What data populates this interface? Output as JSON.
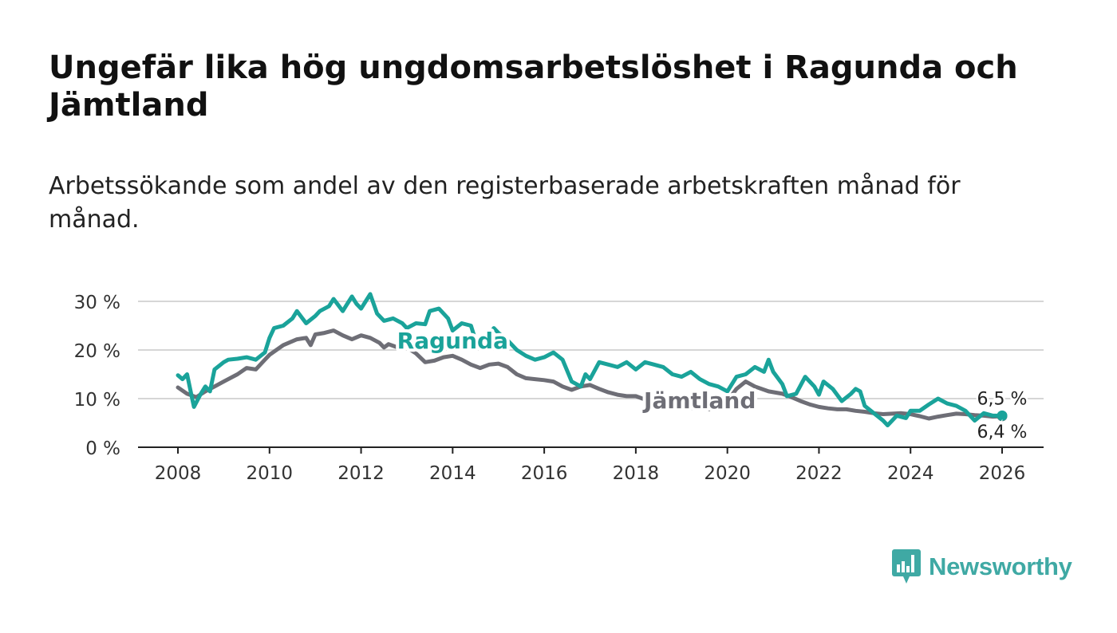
{
  "title": "Ungefär lika hög ungdomsarbetslöshet i Ragunda och Jämtland",
  "subtitle": "Arbetssökande som andel av den registerbaserade arbetskraften månad för månad.",
  "brand": {
    "name": "Newsworthy",
    "color": "#3fa9a4",
    "icon": "newsworthy-logo-icon"
  },
  "chart_data": {
    "type": "line",
    "title": "Ungefär lika hög ungdomsarbetslöshet i Ragunda och Jämtland",
    "xlabel": "",
    "ylabel": "",
    "xlim": [
      2007.6,
      2026.9
    ],
    "ylim": [
      0,
      30
    ],
    "x_ticks": [
      2008,
      2010,
      2012,
      2014,
      2016,
      2018,
      2020,
      2022,
      2024,
      2026
    ],
    "x_tick_labels": [
      "2008",
      "2010",
      "2012",
      "2014",
      "2016",
      "2018",
      "2020",
      "2022",
      "2024",
      "2026"
    ],
    "y_ticks": [
      0,
      10,
      20,
      30
    ],
    "y_tick_labels": [
      "0 %",
      "10 %",
      "20 %",
      "30 %"
    ],
    "grid": true,
    "series": [
      {
        "name": "Jämtland",
        "color": "#6e6e76",
        "label": "Jämtland",
        "end_label": "6,4 %",
        "points": [
          [
            2008.0,
            12.3
          ],
          [
            2008.2,
            11.0
          ],
          [
            2008.4,
            10.3
          ],
          [
            2008.6,
            11.5
          ],
          [
            2008.8,
            12.5
          ],
          [
            2009.0,
            13.5
          ],
          [
            2009.3,
            15.0
          ],
          [
            2009.5,
            16.3
          ],
          [
            2009.7,
            16.0
          ],
          [
            2009.9,
            18.0
          ],
          [
            2010.0,
            19.0
          ],
          [
            2010.3,
            21.0
          ],
          [
            2010.6,
            22.2
          ],
          [
            2010.8,
            22.5
          ],
          [
            2010.9,
            21.0
          ],
          [
            2011.0,
            23.2
          ],
          [
            2011.2,
            23.5
          ],
          [
            2011.4,
            24.0
          ],
          [
            2011.6,
            23.0
          ],
          [
            2011.8,
            22.2
          ],
          [
            2012.0,
            23.0
          ],
          [
            2012.2,
            22.5
          ],
          [
            2012.4,
            21.5
          ],
          [
            2012.5,
            20.5
          ],
          [
            2012.6,
            21.2
          ],
          [
            2012.8,
            20.5
          ],
          [
            2013.0,
            20.5
          ],
          [
            2013.2,
            19.3
          ],
          [
            2013.4,
            17.5
          ],
          [
            2013.6,
            17.8
          ],
          [
            2013.8,
            18.5
          ],
          [
            2014.0,
            18.8
          ],
          [
            2014.2,
            18.0
          ],
          [
            2014.4,
            17.0
          ],
          [
            2014.6,
            16.3
          ],
          [
            2014.8,
            17.0
          ],
          [
            2015.0,
            17.2
          ],
          [
            2015.2,
            16.5
          ],
          [
            2015.4,
            15.0
          ],
          [
            2015.6,
            14.2
          ],
          [
            2015.8,
            14.0
          ],
          [
            2016.0,
            13.8
          ],
          [
            2016.2,
            13.5
          ],
          [
            2016.4,
            12.5
          ],
          [
            2016.6,
            11.8
          ],
          [
            2016.8,
            12.5
          ],
          [
            2017.0,
            12.8
          ],
          [
            2017.2,
            12.0
          ],
          [
            2017.4,
            11.3
          ],
          [
            2017.6,
            10.8
          ],
          [
            2017.8,
            10.5
          ],
          [
            2018.0,
            10.5
          ],
          [
            2018.2,
            9.8
          ],
          [
            2018.4,
            9.2
          ],
          [
            2018.6,
            8.8
          ],
          [
            2018.8,
            8.8
          ],
          [
            2019.0,
            8.3
          ],
          [
            2019.3,
            8.0
          ],
          [
            2019.6,
            7.8
          ],
          [
            2019.9,
            8.5
          ],
          [
            2020.0,
            9.5
          ],
          [
            2020.2,
            12.0
          ],
          [
            2020.4,
            13.5
          ],
          [
            2020.6,
            12.5
          ],
          [
            2020.9,
            11.5
          ],
          [
            2021.2,
            11.0
          ],
          [
            2021.4,
            10.3
          ],
          [
            2021.6,
            9.5
          ],
          [
            2021.8,
            8.8
          ],
          [
            2022.0,
            8.3
          ],
          [
            2022.2,
            8.0
          ],
          [
            2022.4,
            7.8
          ],
          [
            2022.6,
            7.8
          ],
          [
            2022.8,
            7.5
          ],
          [
            2023.0,
            7.3
          ],
          [
            2023.2,
            7.0
          ],
          [
            2023.4,
            6.8
          ],
          [
            2023.6,
            6.9
          ],
          [
            2023.8,
            7.0
          ],
          [
            2024.0,
            6.8
          ],
          [
            2024.2,
            6.4
          ],
          [
            2024.4,
            5.9
          ],
          [
            2024.6,
            6.3
          ],
          [
            2024.8,
            6.6
          ],
          [
            2025.0,
            6.9
          ],
          [
            2025.2,
            6.8
          ],
          [
            2025.4,
            6.6
          ],
          [
            2025.6,
            6.5
          ],
          [
            2025.8,
            6.3
          ],
          [
            2026.0,
            6.4
          ]
        ]
      },
      {
        "name": "Ragunda",
        "color": "#1aa39a",
        "label": "Ragunda",
        "end_label": "6,5 %",
        "points": [
          [
            2008.0,
            14.8
          ],
          [
            2008.1,
            14.0
          ],
          [
            2008.2,
            15.0
          ],
          [
            2008.3,
            10.5
          ],
          [
            2008.35,
            8.3
          ],
          [
            2008.5,
            11.0
          ],
          [
            2008.6,
            12.5
          ],
          [
            2008.7,
            11.5
          ],
          [
            2008.8,
            16.0
          ],
          [
            2009.0,
            17.5
          ],
          [
            2009.1,
            18.0
          ],
          [
            2009.3,
            18.2
          ],
          [
            2009.5,
            18.5
          ],
          [
            2009.7,
            18.0
          ],
          [
            2009.9,
            19.5
          ],
          [
            2010.0,
            22.5
          ],
          [
            2010.1,
            24.5
          ],
          [
            2010.3,
            25.0
          ],
          [
            2010.5,
            26.5
          ],
          [
            2010.6,
            28.0
          ],
          [
            2010.8,
            25.5
          ],
          [
            2011.0,
            27.0
          ],
          [
            2011.1,
            28.0
          ],
          [
            2011.3,
            29.0
          ],
          [
            2011.4,
            30.5
          ],
          [
            2011.6,
            28.0
          ],
          [
            2011.7,
            29.5
          ],
          [
            2011.8,
            31.0
          ],
          [
            2011.9,
            29.5
          ],
          [
            2012.0,
            28.5
          ],
          [
            2012.1,
            30.0
          ],
          [
            2012.2,
            31.5
          ],
          [
            2012.35,
            27.5
          ],
          [
            2012.5,
            26.0
          ],
          [
            2012.7,
            26.5
          ],
          [
            2012.9,
            25.5
          ],
          [
            2013.0,
            24.5
          ],
          [
            2013.2,
            25.5
          ],
          [
            2013.4,
            25.3
          ],
          [
            2013.5,
            28.0
          ],
          [
            2013.7,
            28.5
          ],
          [
            2013.9,
            26.5
          ],
          [
            2014.0,
            24.0
          ],
          [
            2014.2,
            25.5
          ],
          [
            2014.4,
            25.0
          ],
          [
            2014.5,
            22.0
          ],
          [
            2014.7,
            21.5
          ],
          [
            2014.9,
            24.5
          ],
          [
            2015.0,
            23.5
          ],
          [
            2015.2,
            22.0
          ],
          [
            2015.4,
            20.0
          ],
          [
            2015.6,
            18.8
          ],
          [
            2015.8,
            18.0
          ],
          [
            2016.0,
            18.5
          ],
          [
            2016.2,
            19.5
          ],
          [
            2016.4,
            18.0
          ],
          [
            2016.6,
            13.5
          ],
          [
            2016.8,
            12.5
          ],
          [
            2016.9,
            15.0
          ],
          [
            2017.0,
            14.0
          ],
          [
            2017.2,
            17.5
          ],
          [
            2017.4,
            17.0
          ],
          [
            2017.6,
            16.5
          ],
          [
            2017.8,
            17.5
          ],
          [
            2018.0,
            16.0
          ],
          [
            2018.2,
            17.5
          ],
          [
            2018.4,
            17.0
          ],
          [
            2018.6,
            16.5
          ],
          [
            2018.8,
            15.0
          ],
          [
            2019.0,
            14.5
          ],
          [
            2019.2,
            15.5
          ],
          [
            2019.4,
            14.0
          ],
          [
            2019.6,
            13.0
          ],
          [
            2019.8,
            12.5
          ],
          [
            2020.0,
            11.5
          ],
          [
            2020.2,
            14.5
          ],
          [
            2020.4,
            15.0
          ],
          [
            2020.6,
            16.5
          ],
          [
            2020.8,
            15.5
          ],
          [
            2020.9,
            18.0
          ],
          [
            2021.0,
            15.5
          ],
          [
            2021.2,
            13.0
          ],
          [
            2021.3,
            10.5
          ],
          [
            2021.5,
            11.0
          ],
          [
            2021.7,
            14.5
          ],
          [
            2021.9,
            12.5
          ],
          [
            2022.0,
            10.8
          ],
          [
            2022.1,
            13.5
          ],
          [
            2022.3,
            12.0
          ],
          [
            2022.5,
            9.5
          ],
          [
            2022.7,
            11.0
          ],
          [
            2022.8,
            12.0
          ],
          [
            2022.9,
            11.5
          ],
          [
            2023.0,
            8.5
          ],
          [
            2023.2,
            7.0
          ],
          [
            2023.4,
            5.5
          ],
          [
            2023.5,
            4.5
          ],
          [
            2023.7,
            6.5
          ],
          [
            2023.9,
            6.0
          ],
          [
            2024.0,
            7.5
          ],
          [
            2024.2,
            7.5
          ],
          [
            2024.4,
            8.8
          ],
          [
            2024.6,
            10.0
          ],
          [
            2024.8,
            9.0
          ],
          [
            2025.0,
            8.5
          ],
          [
            2025.2,
            7.5
          ],
          [
            2025.4,
            5.5
          ],
          [
            2025.6,
            7.0
          ],
          [
            2025.8,
            6.5
          ],
          [
            2026.0,
            6.5
          ]
        ]
      }
    ]
  }
}
